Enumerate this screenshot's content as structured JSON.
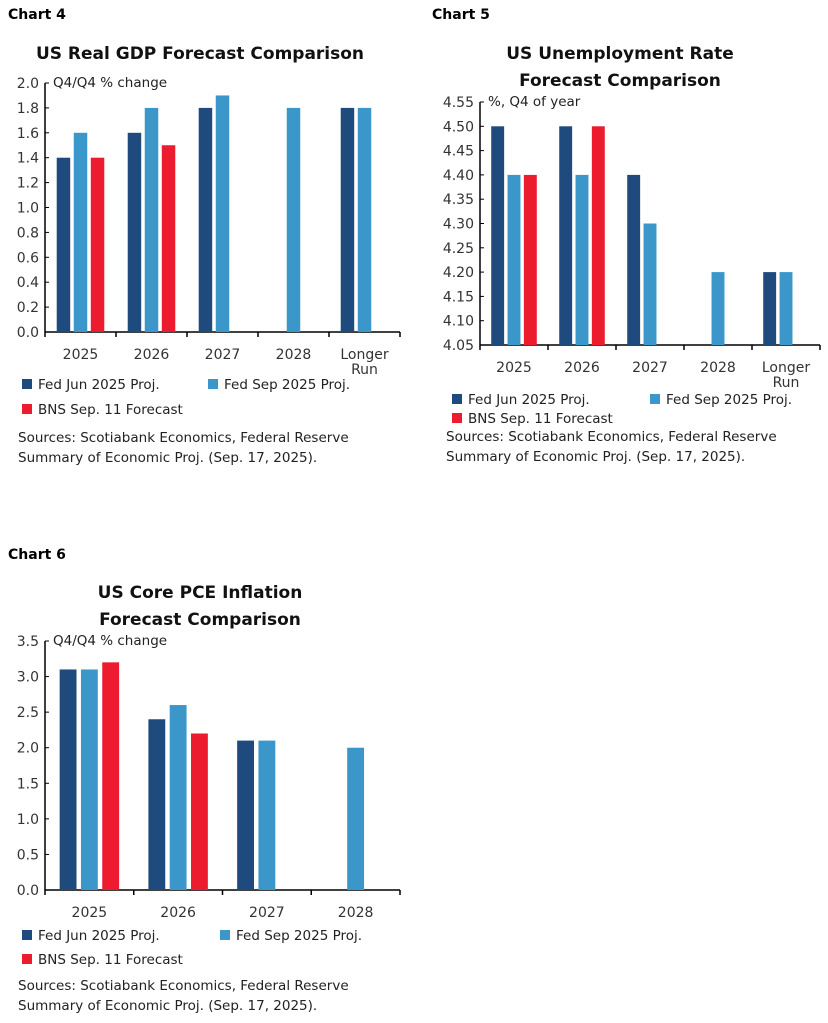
{
  "colors": {
    "fed_jun": "#1f4a7d",
    "fed_sep": "#3b97c9",
    "bns": "#ec1b2e"
  },
  "chart_data": [
    {
      "label": "Chart 4",
      "type": "bar",
      "title": "US Real GDP Forecast Comparison",
      "title_lines": [
        "US Real GDP Forecast Comparison"
      ],
      "unit_note": "Q4/Q4 % change",
      "categories": [
        "2025",
        "2026",
        "2027",
        "2028",
        "Longer Run"
      ],
      "ylim": [
        0.0,
        2.0
      ],
      "yticks": [
        "0.0",
        "0.2",
        "0.4",
        "0.6",
        "0.8",
        "1.0",
        "1.2",
        "1.4",
        "1.6",
        "1.8",
        "2.0"
      ],
      "series": [
        {
          "name": "Fed Jun 2025 Proj.",
          "values": [
            1.4,
            1.6,
            1.8,
            null,
            1.8
          ]
        },
        {
          "name": "Fed Sep 2025 Proj.",
          "values": [
            1.6,
            1.8,
            1.9,
            1.8,
            1.8
          ]
        },
        {
          "name": "BNS Sep. 11 Forecast",
          "values": [
            1.4,
            1.5,
            null,
            null,
            null
          ]
        }
      ],
      "legend": "bottom",
      "grid": false,
      "sources": [
        "Sources: Scotiabank Economics, Federal Reserve",
        "Summary of Economic Proj. (Sep. 17, 2025)."
      ]
    },
    {
      "label": "Chart 5",
      "type": "bar",
      "title": "US Unemployment Rate Forecast Comparison",
      "title_lines": [
        "US Unemployment Rate",
        "Forecast Comparison"
      ],
      "unit_note": "%, Q4 of year",
      "categories": [
        "2025",
        "2026",
        "2027",
        "2028",
        "Longer Run"
      ],
      "ylim": [
        4.05,
        4.55
      ],
      "yticks": [
        "4.05",
        "4.10",
        "4.15",
        "4.20",
        "4.25",
        "4.30",
        "4.35",
        "4.40",
        "4.45",
        "4.50",
        "4.55"
      ],
      "series": [
        {
          "name": "Fed Jun 2025 Proj.",
          "values": [
            4.5,
            4.5,
            4.4,
            null,
            4.2
          ]
        },
        {
          "name": "Fed Sep 2025 Proj.",
          "values": [
            4.4,
            4.4,
            4.3,
            4.2,
            4.2
          ]
        },
        {
          "name": "BNS Sep. 11 Forecast",
          "values": [
            4.4,
            4.5,
            null,
            null,
            null
          ]
        }
      ],
      "legend": "bottom",
      "grid": false,
      "sources": [
        "Sources: Scotiabank Economics, Federal Reserve",
        "Summary of Economic Proj. (Sep. 17, 2025)."
      ]
    },
    {
      "label": "Chart 6",
      "type": "bar",
      "title": "US Core PCE Inflation Forecast Comparison",
      "title_lines": [
        "US Core PCE Inflation",
        "Forecast Comparison"
      ],
      "unit_note": "Q4/Q4 % change",
      "categories": [
        "2025",
        "2026",
        "2027",
        "2028"
      ],
      "ylim": [
        0.0,
        3.5
      ],
      "yticks": [
        "0.0",
        "0.5",
        "1.0",
        "1.5",
        "2.0",
        "2.5",
        "3.0",
        "3.5"
      ],
      "series": [
        {
          "name": "Fed Jun 2025 Proj.",
          "values": [
            3.1,
            2.4,
            2.1,
            null
          ]
        },
        {
          "name": "Fed Sep 2025 Proj.",
          "values": [
            3.1,
            2.6,
            2.1,
            2.0
          ]
        },
        {
          "name": "BNS Sep. 11 Forecast",
          "values": [
            3.2,
            2.2,
            null,
            null
          ]
        }
      ],
      "legend": "bottom",
      "grid": false,
      "sources": [
        "Sources: Scotiabank Economics, Federal Reserve",
        "Summary of Economic Proj. (Sep. 17, 2025)."
      ]
    }
  ]
}
